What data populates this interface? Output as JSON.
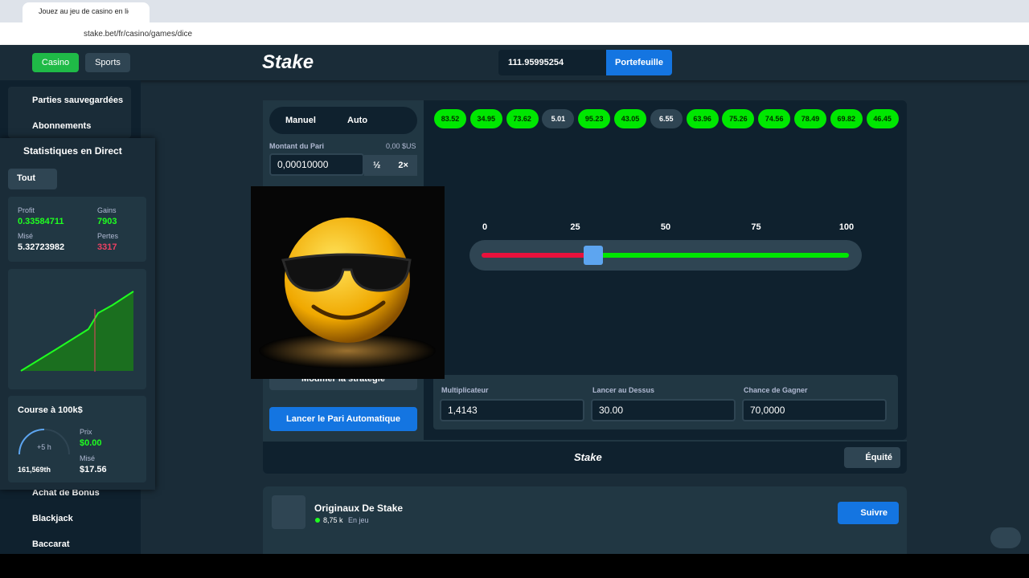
{
  "browser": {
    "tab_title": "Jouez au jeu de casino en ligne",
    "url": "stake.bet/fr/casino/games/dice"
  },
  "header": {
    "casino": "Casino",
    "sports": "Sports",
    "logo": "Stake",
    "balance": "111.95995254",
    "wallet": "Portefeuille"
  },
  "sidebar": {
    "items": [
      "Parties sauvegardées",
      "Abonnements",
      "Achat de Bonus",
      "Blackjack",
      "Baccarat"
    ]
  },
  "stats": {
    "title": "Statistiques en Direct",
    "filter": "Tout",
    "profit_label": "Profit",
    "profit": "0.33584711",
    "wins_label": "Gains",
    "wins": "7903",
    "wagered_label": "Misé",
    "wagered": "5.32723982",
    "losses_label": "Pertes",
    "losses": "3317",
    "race": {
      "title": "Course à 100k$",
      "time": "+5 h",
      "rank": "161,569th",
      "prize_label": "Prix",
      "prize": "$0.00",
      "wagered_label": "Misé",
      "wagered": "$17.56"
    }
  },
  "game": {
    "mode_manual": "Manuel",
    "mode_auto": "Auto",
    "bet_label": "Montant du Pari",
    "bet_usd": "0,00 $US",
    "bet_amount": "0,00010000",
    "half": "½",
    "double": "2×",
    "strategy": "Modifier la stratégie",
    "start": "Lancer le Pari Automatique",
    "results": [
      {
        "value": "83.52",
        "win": true
      },
      {
        "value": "34.95",
        "win": true
      },
      {
        "value": "73.62",
        "win": true
      },
      {
        "value": "5.01",
        "win": false
      },
      {
        "value": "95.23",
        "win": true
      },
      {
        "value": "43.05",
        "win": true
      },
      {
        "value": "6.55",
        "win": false
      },
      {
        "value": "63.96",
        "win": true
      },
      {
        "value": "75.26",
        "win": true
      },
      {
        "value": "74.56",
        "win": true
      },
      {
        "value": "78.49",
        "win": true
      },
      {
        "value": "69.82",
        "win": true
      },
      {
        "value": "46.45",
        "win": true
      }
    ],
    "slider_ticks": [
      0,
      25,
      50,
      75,
      100
    ],
    "inputs": [
      {
        "label": "Multiplicateur",
        "value": "1,4143"
      },
      {
        "label": "Lancer au Dessus",
        "value": "30.00"
      },
      {
        "label": "Chance de Gagner",
        "value": "70,0000"
      }
    ],
    "footer_logo": "Stake",
    "fairness": "Équité"
  },
  "originals": {
    "title": "Originaux De Stake",
    "players": "8,75 k",
    "status": "En jeu",
    "follow": "Suivre"
  }
}
